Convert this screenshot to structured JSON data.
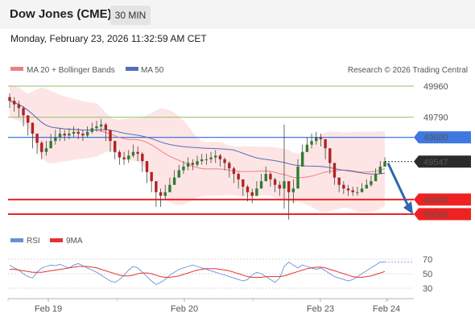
{
  "header": {
    "title": "Dow Jones (CME)",
    "timeframe": "30 MIN"
  },
  "timestamp": "Monday, February 23, 2026 11:32:59 AM CET",
  "legend": {
    "bollinger_label": "MA 20 + Bollinger Bands",
    "ma50_label": "MA 50",
    "credit": "Research © 2026 Trading Central",
    "rsi_label": "RSI",
    "ma9_label": "9MA"
  },
  "colors": {
    "band_fill": "#fde0e0",
    "ma20": "#f08080",
    "ma50": "#5570b8",
    "resistance": "#8fc26a",
    "support": "#ee2222",
    "pivot": "#3f78e0",
    "price_tag": "#2b2b2b",
    "candle_up": "#2e7d32",
    "candle_down": "#b22222",
    "arrow": "#2f66b0",
    "rsi": "#6a8fd8",
    "rsi_ma": "#e33333"
  },
  "chart_data": [
    {
      "type": "candlestick",
      "x_labels": [
        "Feb 19",
        "Feb 20",
        "Feb 23",
        "Feb 24"
      ],
      "y_range": [
        49200,
        50000
      ],
      "levels": [
        {
          "label": "49960",
          "value": 49960,
          "kind": "resistance"
        },
        {
          "label": "49790",
          "value": 49790,
          "kind": "resistance"
        },
        {
          "label": "49680",
          "value": 49680,
          "kind": "pivot"
        },
        {
          "label": "49340",
          "value": 49340,
          "kind": "support"
        },
        {
          "label": "49260",
          "value": 49260,
          "kind": "support"
        }
      ],
      "last_price": {
        "label": "49547",
        "value": 49547
      },
      "forecast_arrow": {
        "from": 49547,
        "to": 49260
      },
      "series": [
        {
          "name": "MA 20 + Bollinger Bands",
          "kind": "ma20_band"
        },
        {
          "name": "MA 50",
          "kind": "ma50"
        }
      ],
      "close": [
        49880,
        49860,
        49840,
        49800,
        49760,
        49700,
        49650,
        49600,
        49620,
        49660,
        49680,
        49700,
        49690,
        49700,
        49710,
        49700,
        49690,
        49710,
        49730,
        49740,
        49750,
        49720,
        49660,
        49600,
        49570,
        49560,
        49580,
        49600,
        49590,
        49550,
        49490,
        49440,
        49380,
        49360,
        49380,
        49420,
        49460,
        49500,
        49520,
        49540,
        49530,
        49550,
        49560,
        49560,
        49570,
        49580,
        49560,
        49540,
        49510,
        49480,
        49450,
        49410,
        49380,
        49360,
        49400,
        49440,
        49480,
        49450,
        49420,
        49400,
        49440,
        49380,
        49400,
        49520,
        49600,
        49640,
        49660,
        49680,
        49670,
        49620,
        49540,
        49460,
        49420,
        49400,
        49390,
        49380,
        49380,
        49400,
        49420,
        49440,
        49480,
        49520,
        49547
      ],
      "high": [
        49920,
        49900,
        49880,
        49850,
        49800,
        49750,
        49700,
        49660,
        49660,
        49700,
        49720,
        49730,
        49720,
        49730,
        49740,
        49730,
        49720,
        49740,
        49760,
        49770,
        49780,
        49760,
        49720,
        49650,
        49610,
        49600,
        49610,
        49640,
        49630,
        49600,
        49540,
        49490,
        49430,
        49400,
        49420,
        49460,
        49500,
        49530,
        49550,
        49570,
        49560,
        49580,
        49590,
        49590,
        49600,
        49610,
        49590,
        49570,
        49550,
        49520,
        49490,
        49450,
        49420,
        49400,
        49440,
        49480,
        49520,
        49490,
        49460,
        49440,
        49750,
        49420,
        49450,
        49560,
        49640,
        49680,
        49700,
        49710,
        49700,
        49660,
        49590,
        49500,
        49460,
        49440,
        49420,
        49410,
        49410,
        49430,
        49450,
        49470,
        49510,
        49550,
        49570
      ],
      "low": [
        49840,
        49820,
        49790,
        49740,
        49690,
        49620,
        49590,
        49560,
        49580,
        49620,
        49640,
        49660,
        49660,
        49670,
        49680,
        49670,
        49660,
        49680,
        49700,
        49710,
        49710,
        49660,
        49600,
        49560,
        49530,
        49530,
        49540,
        49570,
        49550,
        49490,
        49430,
        49380,
        49300,
        49300,
        49340,
        49380,
        49420,
        49460,
        49480,
        49500,
        49500,
        49520,
        49530,
        49530,
        49540,
        49540,
        49520,
        49500,
        49460,
        49430,
        49400,
        49360,
        49330,
        49320,
        49360,
        49400,
        49440,
        49410,
        49380,
        49360,
        49290,
        49230,
        49320,
        49480,
        49560,
        49600,
        49620,
        49640,
        49630,
        49560,
        49480,
        49420,
        49380,
        49370,
        49360,
        49360,
        49360,
        49380,
        49400,
        49410,
        49450,
        49490,
        49520
      ]
    },
    {
      "type": "line",
      "name": "RSI",
      "y_ticks": [
        30,
        50,
        70
      ],
      "y_range": [
        25,
        75
      ],
      "series": [
        {
          "name": "RSI",
          "values": [
            62,
            58,
            55,
            50,
            46,
            44,
            52,
            58,
            60,
            62,
            61,
            63,
            60,
            58,
            62,
            64,
            61,
            58,
            55,
            52,
            48,
            44,
            40,
            38,
            42,
            48,
            55,
            60,
            58,
            52,
            46,
            40,
            35,
            38,
            42,
            48,
            52,
            56,
            58,
            60,
            62,
            60,
            58,
            56,
            54,
            52,
            50,
            48,
            46,
            44,
            42,
            40,
            42,
            48,
            52,
            50,
            46,
            42,
            38,
            44,
            60,
            66,
            62,
            58,
            62,
            60,
            58,
            56,
            58,
            54,
            50,
            46,
            44,
            42,
            40,
            42,
            46,
            50,
            54,
            58,
            62,
            66,
            66
          ]
        },
        {
          "name": "9MA",
          "values": [
            56,
            56,
            55,
            54,
            53,
            52,
            52,
            52,
            53,
            54,
            55,
            56,
            57,
            58,
            59,
            60,
            60,
            60,
            59,
            58,
            56,
            54,
            52,
            50,
            48,
            47,
            47,
            48,
            50,
            51,
            51,
            50,
            48,
            46,
            45,
            45,
            46,
            47,
            49,
            51,
            53,
            55,
            56,
            57,
            57,
            57,
            56,
            55,
            54,
            52,
            50,
            48,
            46,
            45,
            45,
            45,
            46,
            46,
            46,
            46,
            47,
            49,
            51,
            53,
            55,
            57,
            58,
            59,
            59,
            58,
            56,
            54,
            52,
            50,
            48,
            46,
            45,
            45,
            46,
            47,
            49,
            51,
            53
          ]
        }
      ]
    }
  ]
}
